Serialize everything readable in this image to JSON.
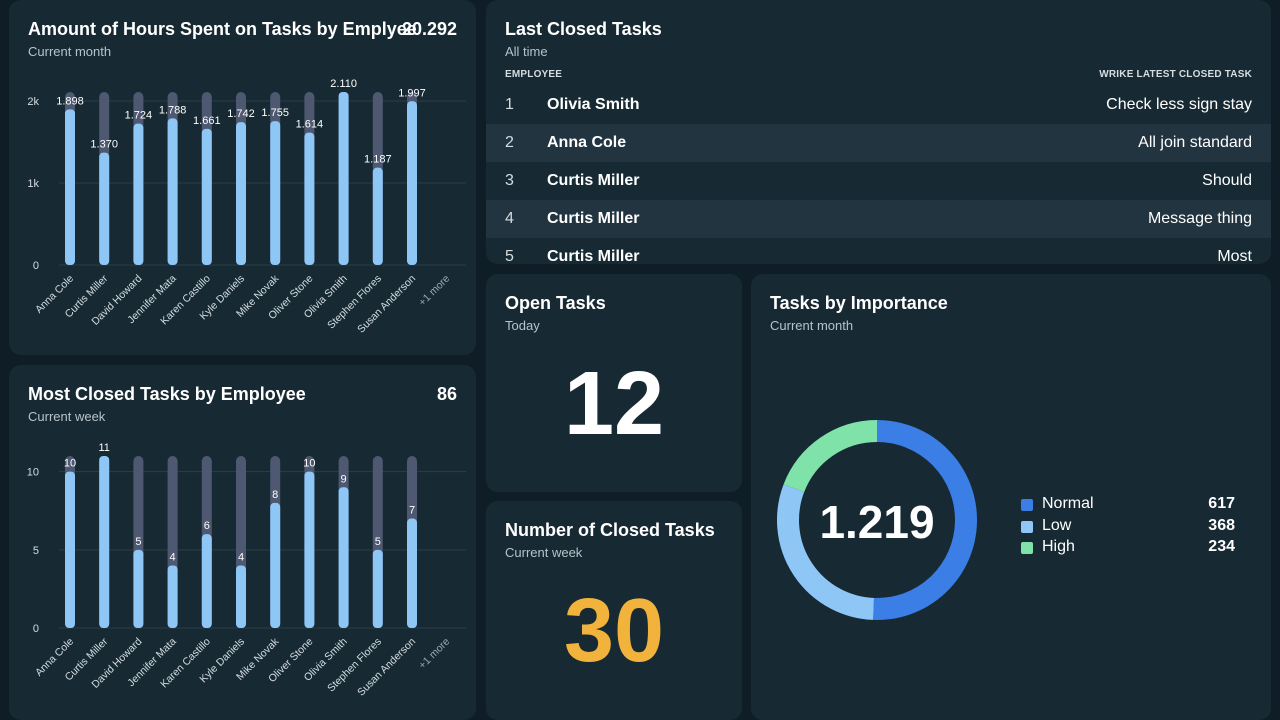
{
  "hours_chart": {
    "title": "Amount of Hours Spent on Tasks by Emplyee",
    "subtitle": "Current month",
    "total": "20.292",
    "chart_data": {
      "type": "bar",
      "title": "Amount of Hours Spent on Tasks by Emplyee",
      "categories": [
        "Anna Cole",
        "Curtis Miller",
        "David Howard",
        "Jennifer Mata",
        "Karen Castillo",
        "Kyle Daniels",
        "Mike Novak",
        "Oliver Stone",
        "Olivia Smith",
        "Stephen Flores",
        "Susan Anderson"
      ],
      "extra_label": "+1 more",
      "values": [
        1898,
        1370,
        1724,
        1788,
        1661,
        1742,
        1755,
        1614,
        2110,
        1187,
        1997
      ],
      "value_labels": [
        "1.898",
        "1.370",
        "1.724",
        "1.788",
        "1.661",
        "1.742",
        "1.755",
        "1.614",
        "2.110",
        "1.187",
        "1.997"
      ],
      "max_track": 2110,
      "y_ticks": [
        {
          "v": 0,
          "label": "0"
        },
        {
          "v": 1000,
          "label": "1k"
        },
        {
          "v": 2000,
          "label": "2k"
        }
      ],
      "ylim": [
        0,
        2110
      ],
      "grid": true,
      "xlabel": "",
      "ylabel": ""
    }
  },
  "closed_by_employee": {
    "title": "Most Closed Tasks by Employee",
    "subtitle": "Current week",
    "total": "86",
    "chart_data": {
      "type": "bar",
      "title": "Most Closed Tasks by Employee",
      "categories": [
        "Anna Cole",
        "Curtis Miller",
        "David Howard",
        "Jennifer Mata",
        "Karen Castillo",
        "Kyle Daniels",
        "Mike Novak",
        "Oliver Stone",
        "Olivia Smith",
        "Stephen Flores",
        "Susan Anderson"
      ],
      "extra_label": "+1 more",
      "values": [
        10,
        11,
        5,
        4,
        6,
        4,
        8,
        10,
        9,
        5,
        7
      ],
      "value_labels": [
        "10",
        "11",
        "5",
        "4",
        "6",
        "4",
        "8",
        "10",
        "9",
        "5",
        "7"
      ],
      "max_track": 11,
      "y_ticks": [
        {
          "v": 0,
          "label": "0"
        },
        {
          "v": 5,
          "label": "5"
        },
        {
          "v": 10,
          "label": "10"
        }
      ],
      "ylim": [
        0,
        11
      ],
      "grid": true,
      "xlabel": "",
      "ylabel": ""
    }
  },
  "last_closed": {
    "title": "Last Closed Tasks",
    "subtitle": "All time",
    "col_employee": "EMPLOYEE",
    "col_task": "WRIKE LATEST CLOSED TASK",
    "rows": [
      {
        "num": "1",
        "name": "Olivia Smith",
        "task": "Check less sign stay"
      },
      {
        "num": "2",
        "name": "Anna Cole",
        "task": "All join standard"
      },
      {
        "num": "3",
        "name": "Curtis Miller",
        "task": "Should"
      },
      {
        "num": "4",
        "name": "Curtis Miller",
        "task": "Message thing"
      },
      {
        "num": "5",
        "name": "Curtis Miller",
        "task": "Most"
      }
    ]
  },
  "open_tasks": {
    "title": "Open Tasks",
    "subtitle": "Today",
    "value": "12",
    "color": "#ffffff"
  },
  "closed_count": {
    "title": "Number of Closed Tasks",
    "subtitle": "Current week",
    "value": "30",
    "color": "#f2b33d"
  },
  "importance": {
    "title": "Tasks by Importance",
    "subtitle": "Current month",
    "center_value": "1.219",
    "chart_data": {
      "type": "pie",
      "title": "Tasks by Importance",
      "donut": true,
      "total_label": "1.219",
      "slices": [
        {
          "label": "Normal",
          "value": 617,
          "color": "#3a7ee6"
        },
        {
          "label": "Low",
          "value": 368,
          "color": "#8ec6f6"
        },
        {
          "label": "High",
          "value": 234,
          "color": "#7fe2a8"
        }
      ]
    },
    "legend": [
      {
        "label": "Normal",
        "value": "617",
        "color": "#3a7ee6"
      },
      {
        "label": "Low",
        "value": "368",
        "color": "#8ec6f6"
      },
      {
        "label": "High",
        "value": "234",
        "color": "#7fe2a8"
      }
    ]
  },
  "colors": {
    "bar_fill": "#8ec6f6",
    "bar_track": "#4e5870",
    "grid": "#2b3f49",
    "tick_text": "#d5dde1"
  }
}
